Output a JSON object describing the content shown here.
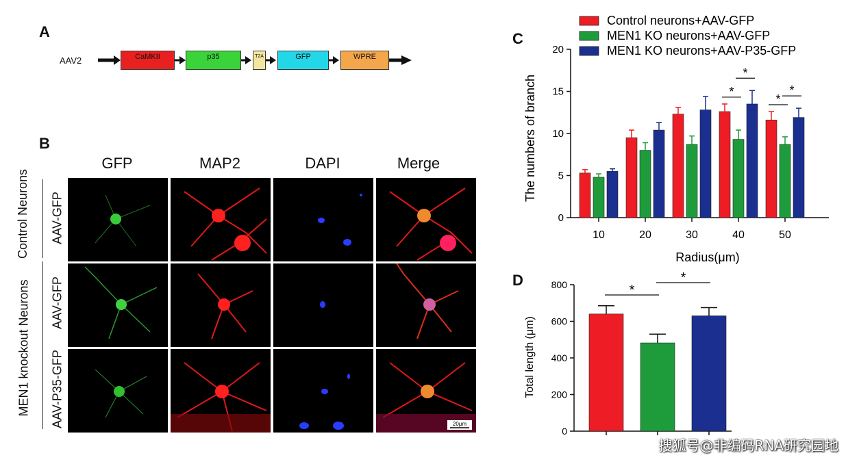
{
  "panels": {
    "a": "A",
    "b": "B",
    "c": "C",
    "d": "D"
  },
  "construct": {
    "vector": "AAV2",
    "elements": [
      {
        "label": "CaMKII",
        "color": "#e82020"
      },
      {
        "label": "p35",
        "color": "#3ad43a"
      },
      {
        "label": "T2A",
        "color": "#f2e6a0"
      },
      {
        "label": "GFP",
        "color": "#22d8e8"
      },
      {
        "label": "WPRE",
        "color": "#f4a64a"
      }
    ]
  },
  "microscopy": {
    "columns": [
      "GFP",
      "MAP2",
      "DAPI",
      "Merge"
    ],
    "row_groups": [
      {
        "group": "Control Neurons",
        "rows": [
          "AAV-GFP"
        ]
      },
      {
        "group": "MEN1 knockout Neurons",
        "rows": [
          "AAV-GFP",
          "AAV-P35-GFP"
        ]
      }
    ],
    "scale_bar": "20μm"
  },
  "colors": {
    "control": "#ee1c24",
    "ko_gfp": "#1e9c3c",
    "ko_p35": "#1a2f8f"
  },
  "chart_data": [
    {
      "type": "bar",
      "panel": "C",
      "categories": [
        "10",
        "20",
        "30",
        "40",
        "50"
      ],
      "series": [
        {
          "name": "Control neurons+AAV-GFP",
          "values": [
            5.3,
            9.5,
            12.3,
            12.6,
            11.6
          ],
          "errors": [
            0.4,
            0.9,
            0.8,
            0.9,
            1.0
          ]
        },
        {
          "name": "MEN1 KO neurons+AAV-GFP",
          "values": [
            4.8,
            8.0,
            8.7,
            9.3,
            8.7
          ],
          "errors": [
            0.4,
            0.9,
            1.0,
            1.1,
            0.9
          ]
        },
        {
          "name": "MEN1 KO neurons+AAV-P35-GFP",
          "values": [
            5.5,
            10.4,
            12.8,
            13.5,
            11.9
          ],
          "errors": [
            0.3,
            0.9,
            1.6,
            1.6,
            1.1
          ]
        }
      ],
      "xlabel": "Radius(μm)",
      "ylabel": "The numbers of branch",
      "ylim": [
        0,
        20
      ],
      "yticks": [
        0,
        5,
        10,
        15,
        20
      ],
      "significance": "*",
      "legend": "top"
    },
    {
      "type": "bar",
      "panel": "D",
      "categories": [
        "Control neurons+AAV-GFP",
        "MEN1 KO neurons+AAV-GFP",
        "MEN1 KO neurons+AAV-P35-GFP"
      ],
      "values": [
        640,
        482,
        630
      ],
      "errors": [
        45,
        48,
        45
      ],
      "ylabel": "Total length (μm)",
      "ylim": [
        0,
        800
      ],
      "yticks": [
        0,
        200,
        400,
        600,
        800
      ],
      "significance": "*"
    }
  ],
  "watermark": "搜狐号@非编码RNA研究园地"
}
